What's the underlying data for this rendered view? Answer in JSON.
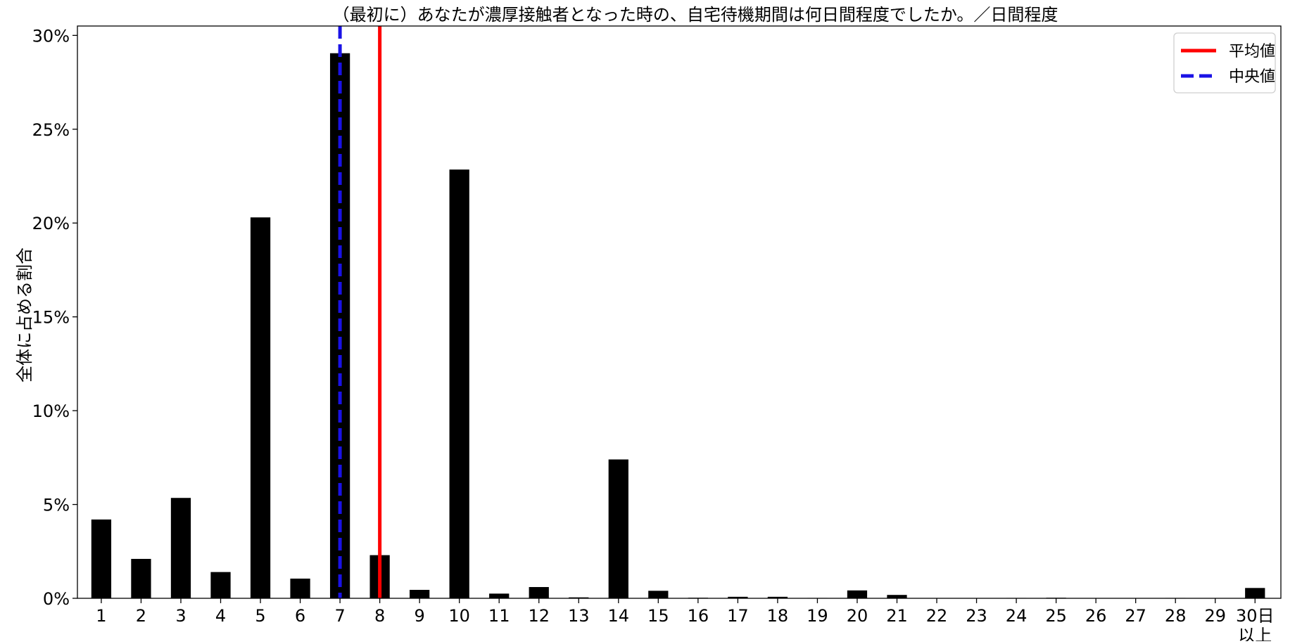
{
  "chart_data": {
    "type": "bar",
    "title": "（最初に）あなたが濃厚接触者となった時の、自宅待機期間は何日間程度でしたか。／日間程度",
    "xlabel": "",
    "ylabel": "全体に占める割合",
    "categories": [
      "1",
      "2",
      "3",
      "4",
      "5",
      "6",
      "7",
      "8",
      "9",
      "10",
      "11",
      "12",
      "13",
      "14",
      "15",
      "16",
      "17",
      "18",
      "19",
      "20",
      "21",
      "22",
      "23",
      "24",
      "25",
      "26",
      "27",
      "28",
      "29",
      "30日以上"
    ],
    "category_lines": [
      [
        "1"
      ],
      [
        "2"
      ],
      [
        "3"
      ],
      [
        "4"
      ],
      [
        "5"
      ],
      [
        "6"
      ],
      [
        "7"
      ],
      [
        "8"
      ],
      [
        "9"
      ],
      [
        "10"
      ],
      [
        "11"
      ],
      [
        "12"
      ],
      [
        "13"
      ],
      [
        "14"
      ],
      [
        "15"
      ],
      [
        "16"
      ],
      [
        "17"
      ],
      [
        "18"
      ],
      [
        "19"
      ],
      [
        "20"
      ],
      [
        "21"
      ],
      [
        "22"
      ],
      [
        "23"
      ],
      [
        "24"
      ],
      [
        "25"
      ],
      [
        "26"
      ],
      [
        "27"
      ],
      [
        "28"
      ],
      [
        "29"
      ],
      [
        "30日",
        "以上"
      ]
    ],
    "values": [
      4.2,
      2.1,
      5.35,
      1.4,
      20.3,
      1.05,
      29.05,
      2.3,
      0.45,
      22.85,
      0.25,
      0.6,
      0.05,
      7.4,
      0.4,
      0.03,
      0.08,
      0.08,
      0.02,
      0.42,
      0.18,
      0.0,
      0.0,
      0.02,
      0.03,
      0.0,
      0.0,
      0.02,
      0.0,
      0.55
    ],
    "ylim": [
      0,
      30.5
    ],
    "yticks": [
      0,
      5,
      10,
      15,
      20,
      25,
      30
    ],
    "ytick_labels": [
      "0%",
      "5%",
      "10%",
      "15%",
      "20%",
      "25%",
      "30%"
    ],
    "bar_color": "#000000",
    "reference_lines": [
      {
        "name": "平均値",
        "x_position": 8,
        "color": "#ff0000",
        "style": "solid"
      },
      {
        "name": "中央値",
        "x_position": 7,
        "color": "#1a12e6",
        "style": "dashed"
      }
    ],
    "legend": {
      "placement": "top-right"
    },
    "grid": false
  }
}
